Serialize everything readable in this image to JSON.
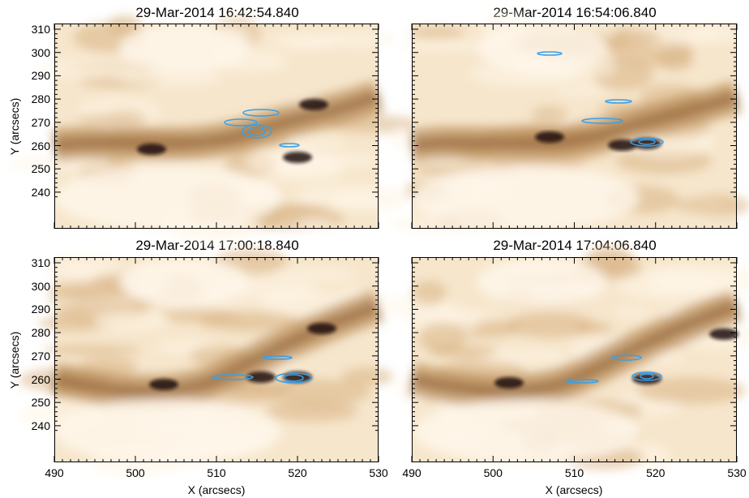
{
  "figure": {
    "panels": [
      {
        "title": "29-Mar-2014 16:42:54.840"
      },
      {
        "title": "29-Mar-2014 16:54:06.840"
      },
      {
        "title": "29-Mar-2014 17:00:18.840"
      },
      {
        "title": "29-Mar-2014 17:04:06.840"
      }
    ],
    "y_axis_label": "Y (arcsecs)",
    "x_axis_label": "X (arcsecs)",
    "y_ticks": [
      "310",
      "300",
      "290",
      "280",
      "270",
      "260",
      "250",
      "240"
    ],
    "x_ticks": [
      "490",
      "500",
      "510",
      "520",
      "530"
    ],
    "colors": {
      "background_light": "#fbf1e0",
      "loop_mid": "#c79a66",
      "loop_dark": "#3a2412",
      "contour": "#3aa0e8"
    }
  }
}
